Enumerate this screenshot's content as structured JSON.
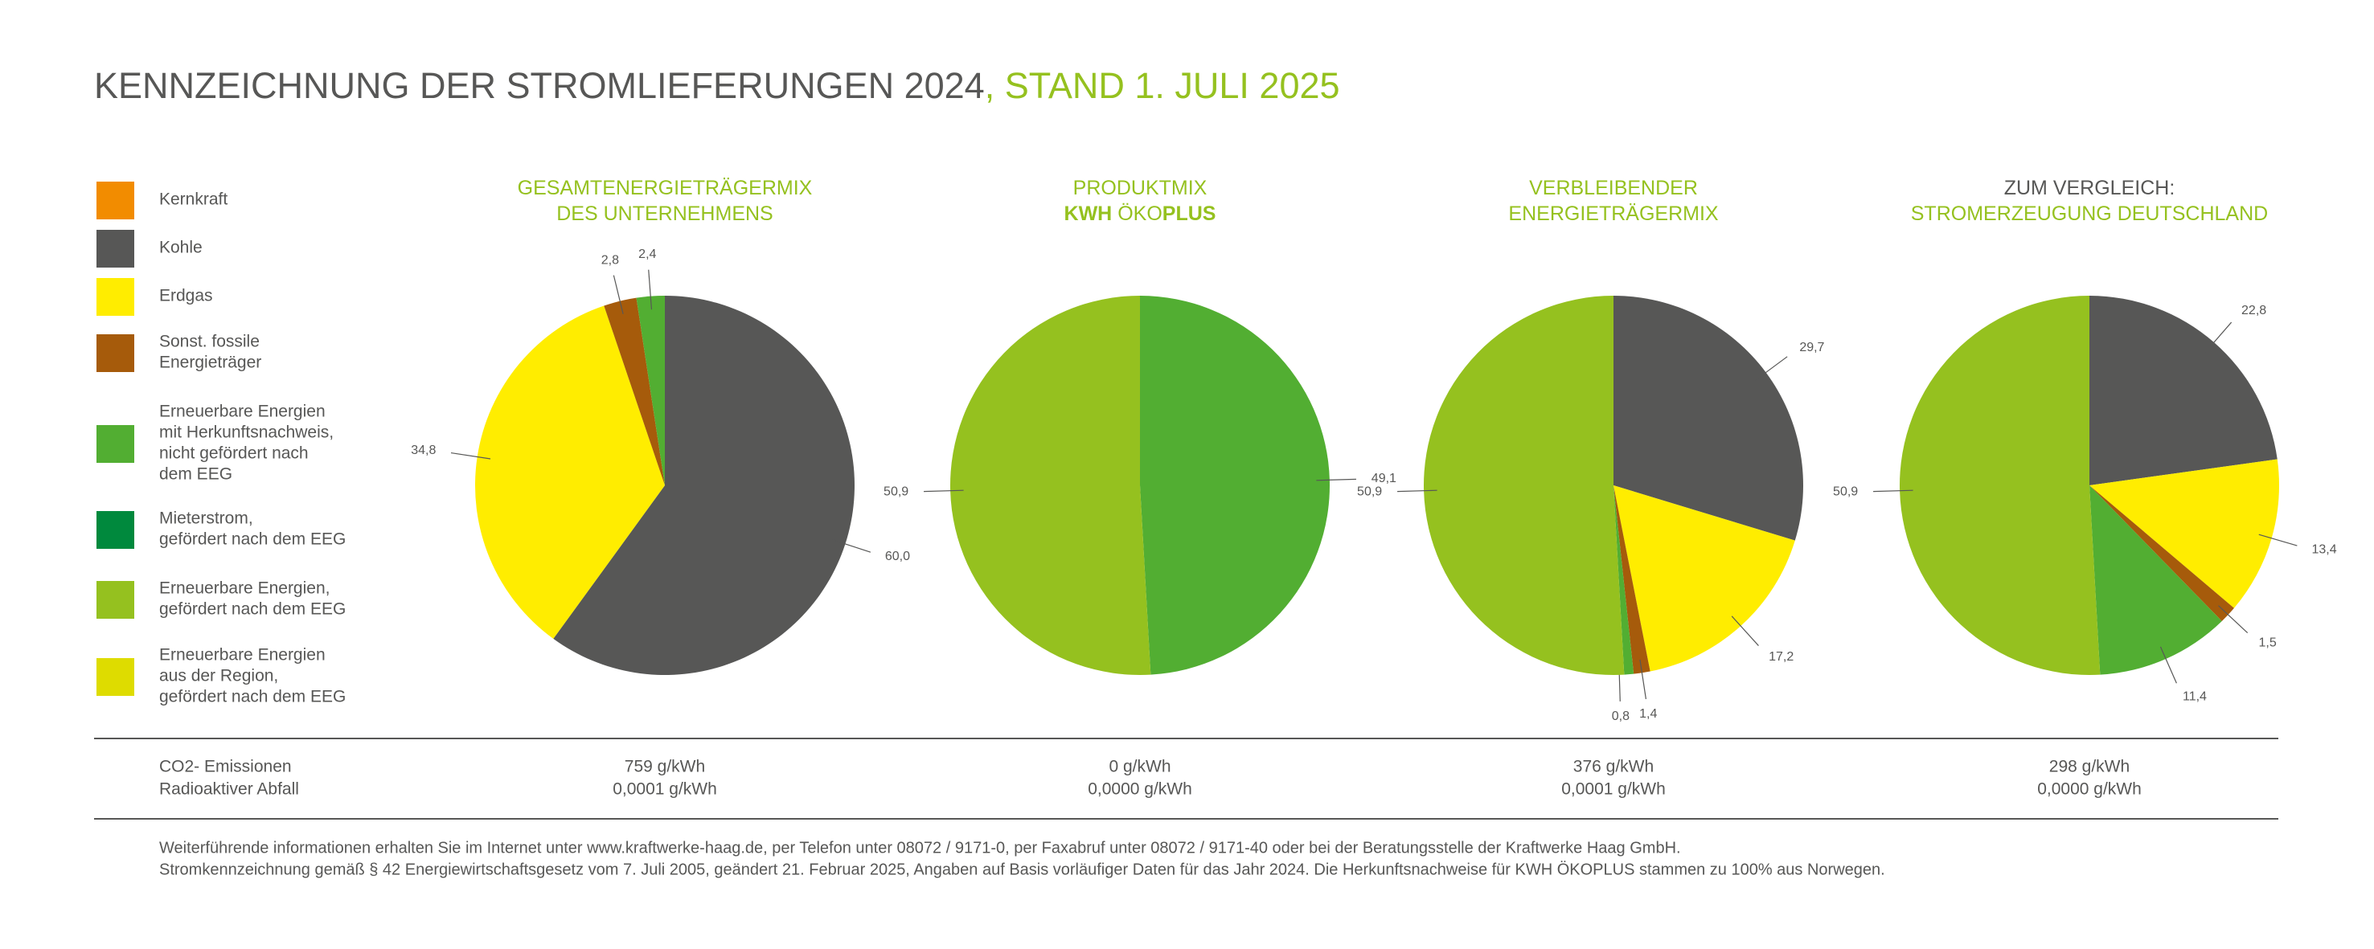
{
  "title": [
    "KENNZEICHNUNG DER STROMLIEFERUNGEN 2024",
    ", STAND 1. JULI 2025"
  ],
  "legend": [
    {
      "label": [
        "Kernkraft"
      ],
      "color": "#f28c00"
    },
    {
      "label": [
        "Kohle"
      ],
      "color": "#575756"
    },
    {
      "label": [
        "Erdgas"
      ],
      "color": "#ffed00"
    },
    {
      "label": [
        "Sonst. fossile",
        "Energieträger"
      ],
      "color": "#a65b0b"
    },
    {
      "label": [
        "Erneuerbare Energien",
        "mit Herkunftsnachweis,",
        "nicht gefördert nach",
        "dem EEG"
      ],
      "color": "#52ae32"
    },
    {
      "label": [
        "Mieterstrom,",
        "gefördert nach dem EEG"
      ],
      "color": "#00893d"
    },
    {
      "label": [
        "Erneuerbare Energien,",
        "gefördert nach dem EEG"
      ],
      "color": "#95c11f"
    },
    {
      "label": [
        "Erneuerbare Energien",
        "aus der Region,",
        "gefördert nach dem EEG"
      ],
      "color": "#dedc00"
    }
  ],
  "chart_data": [
    {
      "type": "pie",
      "title": [
        [
          "GESAMTENERGIETRÄGERMIX"
        ],
        [
          "DES UNTERNEHMENS"
        ]
      ],
      "values": [
        60.0,
        34.8,
        2.8,
        2.4
      ],
      "value_labels": [
        "60,0",
        "34,8",
        "2,8",
        "2,4"
      ],
      "colors": [
        "#575756",
        "#ffed00",
        "#a65b0b",
        "#52ae32"
      ]
    },
    {
      "type": "pie",
      "title": [
        [
          "PRODUKTMIX"
        ],
        [
          "KWH",
          " ÖKO",
          "PLUS"
        ]
      ],
      "values": [
        49.1,
        50.9
      ],
      "value_labels": [
        "49,1",
        "50,9"
      ],
      "colors": [
        "#52ae32",
        "#95c11f"
      ]
    },
    {
      "type": "pie",
      "title": [
        [
          "VERBLEIBENDER"
        ],
        [
          "ENERGIETRÄGERMIX"
        ]
      ],
      "values": [
        29.7,
        17.2,
        1.4,
        0.8,
        50.9
      ],
      "value_labels": [
        "29,7",
        "17,2",
        "1,4",
        "0,8",
        "50,9"
      ],
      "colors": [
        "#575756",
        "#ffed00",
        "#a65b0b",
        "#52ae32",
        "#95c11f"
      ]
    },
    {
      "type": "pie",
      "title": [
        [
          "ZUM VERGLEICH:"
        ],
        [
          "STROMERZEUGUNG DEUTSCHLAND"
        ]
      ],
      "values": [
        22.8,
        13.4,
        1.5,
        11.4,
        50.9
      ],
      "value_labels": [
        "22,8",
        "13,4",
        "1,5",
        "11,4",
        "50,9"
      ],
      "colors": [
        "#575756",
        "#ffed00",
        "#a65b0b",
        "#52ae32",
        "#95c11f"
      ]
    }
  ],
  "emissions": {
    "labels": [
      "CO2- Emissionen",
      "Radioaktiver Abfall"
    ],
    "values": [
      [
        "759 g/kWh",
        "0,0001 g/kWh"
      ],
      [
        "0 g/kWh",
        "0,0000 g/kWh"
      ],
      [
        "376 g/kWh",
        "0,0001 g/kWh"
      ],
      [
        "298 g/kWh",
        "0,0000 g/kWh"
      ]
    ]
  },
  "footnotes": [
    "Weiterführende informationen erhalten Sie im Internet unter www.kraftwerke-haag.de, per Telefon unter 08072 / 9171-0, per Faxabruf unter 08072 / 9171-40 oder bei der Beratungsstelle der Kraftwerke Haag GmbH.",
    "Stromkennzeichnung gemäß § 42 Energiewirtschaftsgesetz vom 7. Juli 2005, geändert 21. Februar 2025, Angaben auf Basis vorläufiger Daten für das Jahr 2024. Die Herkunftsnachweise für KWH ÖKOPLUS stammen zu 100% aus Norwegen."
  ]
}
